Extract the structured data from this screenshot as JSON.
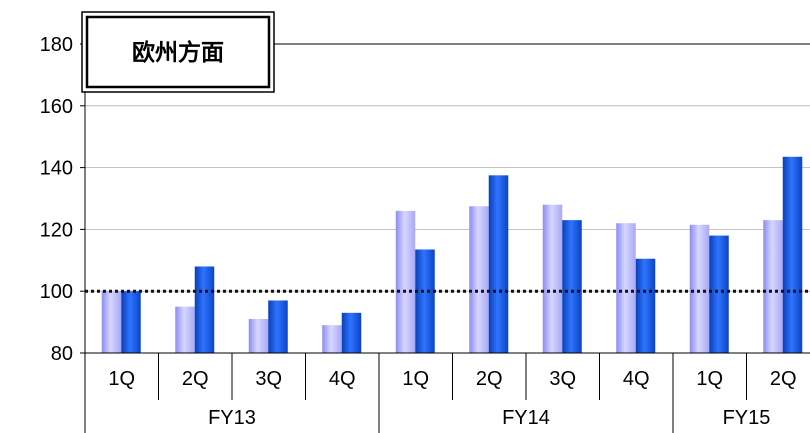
{
  "chart_data": {
    "type": "bar",
    "title": "欧州方面",
    "ylim": [
      80,
      180
    ],
    "yticks": [
      80,
      100,
      120,
      140,
      160,
      180
    ],
    "reference_line": 100,
    "grid": true,
    "legend": "none",
    "categories": [
      "1Q",
      "2Q",
      "3Q",
      "4Q",
      "1Q",
      "2Q",
      "3Q",
      "4Q",
      "1Q",
      "2Q"
    ],
    "groups": [
      {
        "label": "FY13",
        "count": 4
      },
      {
        "label": "FY14",
        "count": 4
      },
      {
        "label": "FY15",
        "count": 2
      }
    ],
    "series": [
      {
        "values": [
          100,
          95,
          91,
          89,
          126,
          127.5,
          128,
          122,
          121.5,
          123
        ],
        "color": "#b3b3ff"
      },
      {
        "values": [
          100,
          108,
          97,
          93,
          113.5,
          137.5,
          123,
          110.5,
          118,
          143.5
        ],
        "color": "#1f5fe0"
      }
    ]
  }
}
